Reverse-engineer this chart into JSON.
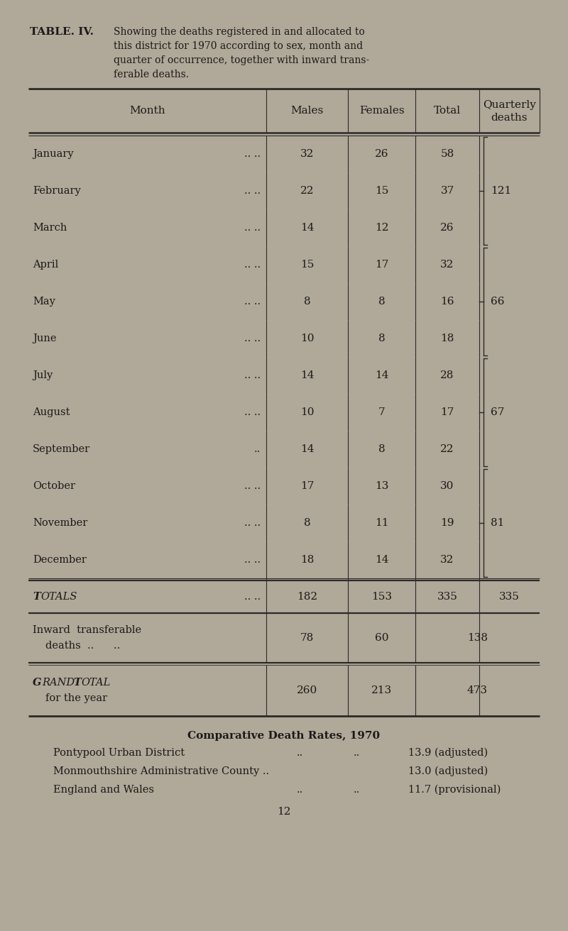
{
  "bg_color": "#b0a898",
  "text_color": "#1a1a1a",
  "title_bold": "TABLE. IV.",
  "title_rest": "Showing the deaths registered in and allocated to\nthis district for 1970 according to sex, month and\nquarter of occurrence, together with inward trans-\nferable deaths.",
  "col_headers": [
    "Month",
    "Males",
    "Females",
    "Total",
    "Quarterly\ndeaths"
  ],
  "months": [
    [
      "January",
      32,
      26,
      58
    ],
    [
      "February",
      22,
      15,
      37
    ],
    [
      "March",
      14,
      12,
      26
    ],
    [
      "April",
      15,
      17,
      32
    ],
    [
      "May",
      8,
      8,
      16
    ],
    [
      "June",
      10,
      8,
      18
    ],
    [
      "July",
      14,
      14,
      28
    ],
    [
      "August",
      10,
      7,
      17
    ],
    [
      "September",
      14,
      8,
      22
    ],
    [
      "October",
      17,
      13,
      30
    ],
    [
      "November",
      8,
      11,
      19
    ],
    [
      "December",
      18,
      14,
      32
    ]
  ],
  "quarterly": [
    {
      "value": 121,
      "rows": [
        0,
        1,
        2
      ]
    },
    {
      "value": 66,
      "rows": [
        3,
        4,
        5
      ]
    },
    {
      "value": 67,
      "rows": [
        6,
        7,
        8
      ]
    },
    {
      "value": 81,
      "rows": [
        9,
        10,
        11
      ]
    }
  ],
  "totals": [
    182,
    153,
    335,
    335
  ],
  "inward": [
    78,
    60,
    138
  ],
  "grand": [
    260,
    213,
    473
  ],
  "comp_title": "Comparative Death Rates, 1970",
  "comp_lines": [
    "Pontypool Urban District          ..      ..   13.9 (adjusted)",
    "Monmouthshire Administrative County ..    13.0 (adjusted)",
    "England and Wales             ..      ..   11.7 (provisional)"
  ],
  "page_num": "12"
}
